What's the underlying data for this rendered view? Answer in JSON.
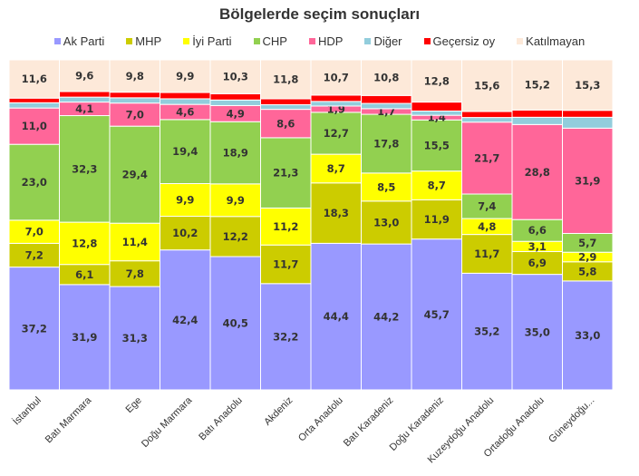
{
  "chart_data": {
    "type": "bar",
    "stacked": true,
    "title": "Bölgelerde seçim sonuçları",
    "xlabel": "",
    "ylabel": "",
    "ylim": [
      0,
      100
    ],
    "grid": false,
    "legend_position": "top",
    "categories": [
      "İstanbul",
      "Batı Marmara",
      "Ege",
      "Doğu Marmara",
      "Batı Anadolu",
      "Akdeniz",
      "Orta Anadolu",
      "Batı Karadeniz",
      "Doğu Karadeniz",
      "Kuzeydoğu Anadolu",
      "Ortadoğu Anadolu",
      "Güneydoğu..."
    ],
    "series": [
      {
        "name": "Ak Parti",
        "color": "#9999ff",
        "values": [
          37.2,
          31.9,
          31.3,
          42.4,
          40.5,
          32.2,
          44.4,
          44.2,
          45.7,
          35.2,
          35.0,
          33.0
        ],
        "labeled": true
      },
      {
        "name": "MHP",
        "color": "#cccc00",
        "values": [
          7.2,
          6.1,
          7.8,
          10.2,
          12.2,
          11.7,
          18.3,
          13.0,
          11.9,
          11.7,
          6.9,
          5.8
        ],
        "labeled": true
      },
      {
        "name": "İyi Parti",
        "color": "#ffff00",
        "values": [
          7.0,
          12.8,
          11.4,
          9.9,
          9.9,
          11.2,
          8.7,
          8.5,
          8.7,
          4.8,
          3.1,
          2.9
        ],
        "labeled": true
      },
      {
        "name": "CHP",
        "color": "#92d050",
        "values": [
          23.0,
          32.3,
          29.4,
          19.4,
          18.9,
          21.3,
          12.7,
          17.8,
          15.5,
          7.4,
          6.6,
          5.7
        ],
        "labeled": true
      },
      {
        "name": "HDP",
        "color": "#ff6699",
        "values": [
          11.0,
          4.1,
          7.0,
          4.6,
          4.9,
          8.6,
          1.9,
          1.7,
          1.4,
          21.7,
          28.8,
          31.9
        ],
        "labeled": true
      },
      {
        "name": "Diğer",
        "color": "#92cddc",
        "values": [
          1.6,
          1.5,
          1.6,
          1.7,
          1.7,
          1.4,
          1.4,
          1.6,
          1.3,
          1.4,
          2.2,
          3.3
        ],
        "labeled": false
      },
      {
        "name": "Geçersiz oy",
        "color": "#ff0000",
        "values": [
          1.4,
          1.7,
          1.7,
          1.9,
          1.9,
          1.8,
          1.9,
          2.4,
          2.7,
          1.8,
          2.2,
          2.1
        ],
        "labeled": false
      },
      {
        "name": "Katılmayan",
        "color": "#fde9d9",
        "values": [
          11.6,
          9.6,
          9.8,
          9.9,
          10.3,
          11.8,
          10.7,
          10.8,
          12.8,
          15.6,
          15.2,
          15.3
        ],
        "labeled": true
      }
    ]
  }
}
